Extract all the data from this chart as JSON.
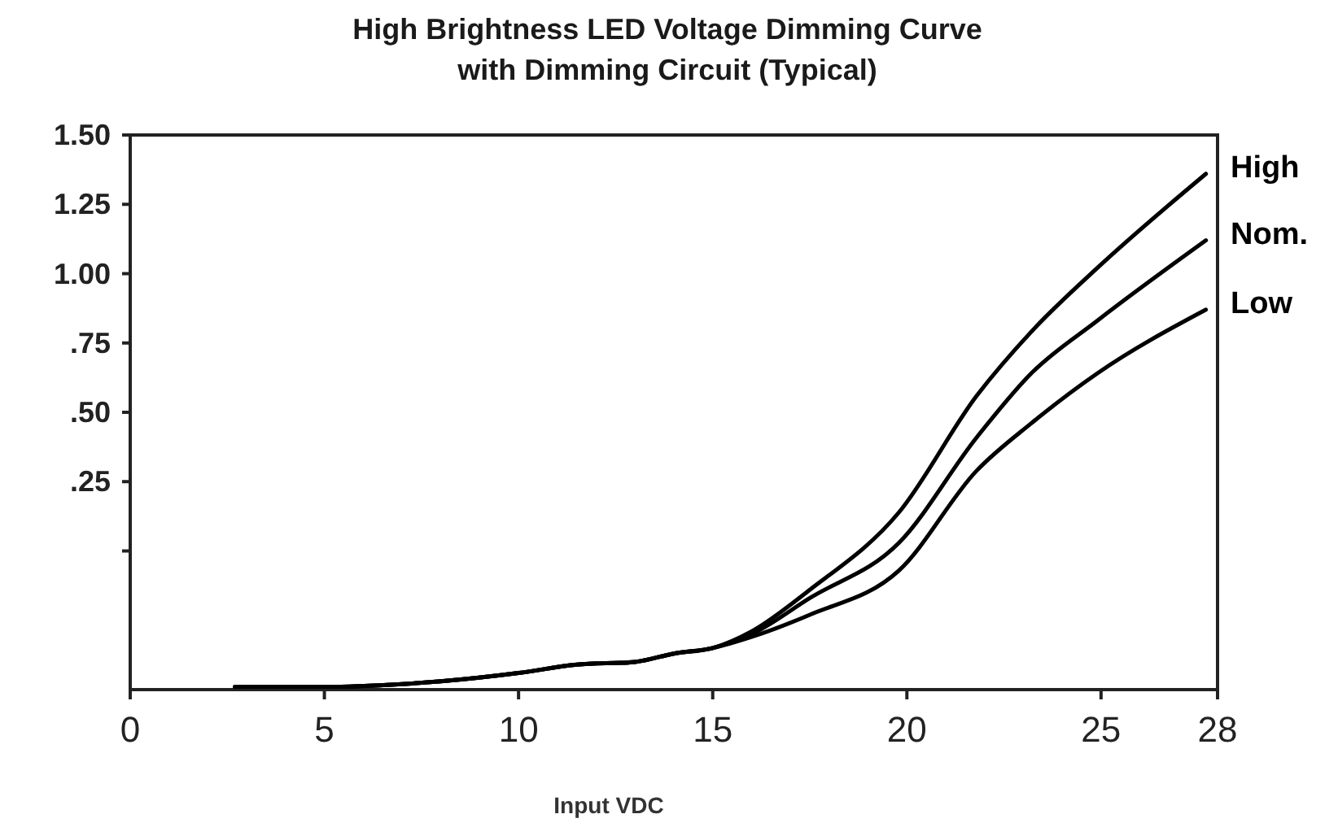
{
  "chart_data": {
    "type": "line",
    "title": "High Brightness LED Voltage Dimming Curve with Dimming Circuit (Typical)",
    "xlabel": "Input VDC",
    "xlim": [
      0,
      28
    ],
    "xticks": [
      0,
      5,
      10,
      15,
      20,
      25,
      28
    ],
    "ylim": [
      -0.5,
      1.5
    ],
    "yticks": [
      {
        "value": 0,
        "label": null
      },
      {
        "value": 0.25,
        "label": ".25"
      },
      {
        "value": 0.5,
        "label": ".50"
      },
      {
        "value": 0.75,
        "label": ".75"
      },
      {
        "value": 1,
        "label": "1.00"
      },
      {
        "value": 1.25,
        "label": "1.25"
      },
      {
        "value": 1.5,
        "label": "1.50"
      }
    ],
    "grid": false,
    "series": [
      {
        "name": "High",
        "color": "#000000",
        "x": [
          2.7,
          5,
          7,
          8,
          10,
          11.5,
          13,
          14,
          15,
          16,
          17.5,
          19.8,
          21.8,
          23.2,
          24.9,
          27.7
        ],
        "values": [
          -0.49,
          -0.49,
          -0.48,
          -0.47,
          -0.44,
          -0.41,
          -0.4,
          -0.37,
          -0.35,
          -0.29,
          -0.14,
          0.14,
          0.56,
          0.79,
          1.02,
          1.36
        ]
      },
      {
        "name": "Nom.",
        "color": "#000000",
        "x": [
          2.7,
          5,
          7,
          8,
          10,
          11.5,
          13,
          14,
          15,
          16,
          17.5,
          19.8,
          21.8,
          23.2,
          24.9,
          27.7
        ],
        "values": [
          -0.49,
          -0.49,
          -0.48,
          -0.47,
          -0.44,
          -0.41,
          -0.4,
          -0.37,
          -0.35,
          -0.3,
          -0.17,
          0.03,
          0.41,
          0.64,
          0.83,
          1.12
        ]
      },
      {
        "name": "Low",
        "color": "#000000",
        "x": [
          2.7,
          5,
          7,
          8,
          10,
          11.5,
          13,
          14,
          15,
          16,
          17.5,
          19.8,
          21.8,
          23.2,
          24.9,
          27.7
        ],
        "values": [
          -0.49,
          -0.49,
          -0.48,
          -0.47,
          -0.44,
          -0.41,
          -0.4,
          -0.37,
          -0.35,
          -0.31,
          -0.23,
          -0.07,
          0.29,
          0.46,
          0.64,
          0.87
        ]
      }
    ]
  }
}
